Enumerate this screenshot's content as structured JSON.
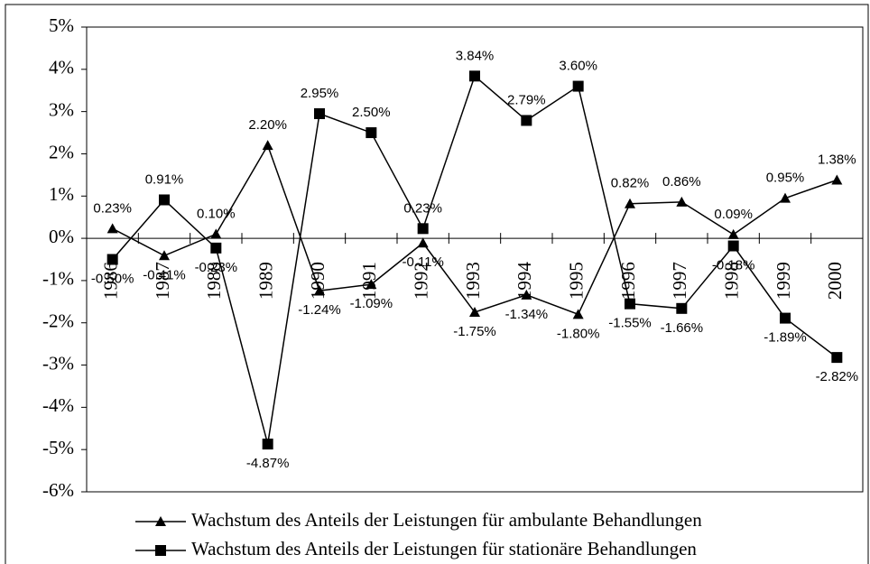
{
  "chart_data": {
    "type": "line",
    "categories": [
      "1986",
      "1987",
      "1988",
      "1989",
      "1990",
      "1991",
      "1992",
      "1993",
      "1994",
      "1995",
      "1996",
      "1997",
      "1998",
      "1999",
      "2000"
    ],
    "series": [
      {
        "name": "Wachstum des Anteils der Leistungen für ambulante Behandlungen",
        "color": "#000000",
        "marker": "triangle",
        "values": [
          0.23,
          -0.41,
          0.1,
          2.2,
          -1.24,
          -1.09,
          -0.11,
          -1.75,
          -1.34,
          -1.8,
          0.82,
          0.86,
          0.09,
          0.95,
          1.38
        ],
        "value_labels": [
          "0.23%",
          "-0.41%",
          "0.10%",
          "2.20%",
          "-1.24%",
          "-1.09%",
          "-0.11%",
          "-1.75%",
          "-1.34%",
          "-1.80%",
          "0.82%",
          "0.86%",
          "0.09%",
          "0.95%",
          "1.38%"
        ]
      },
      {
        "name": "Wachstum des Anteils der Leistungen für stationäre Behandlungen",
        "color": "#000000",
        "marker": "square",
        "values": [
          -0.5,
          0.91,
          -0.23,
          -4.87,
          2.95,
          2.5,
          0.23,
          3.84,
          2.79,
          3.6,
          -1.55,
          -1.66,
          -0.18,
          -1.89,
          -2.82
        ],
        "value_labels": [
          "-0.50%",
          "0.91%",
          "-0.23%",
          "-4.87%",
          "2.95%",
          "2.50%",
          "0.23%",
          "3.84%",
          "2.79%",
          "3.60%",
          "-1.55%",
          "-1.66%",
          "-0.18%",
          "-1.89%",
          "-2.82%"
        ]
      }
    ],
    "ylim": [
      -6,
      5
    ],
    "yticks": [
      {
        "value": -6,
        "label": "-6%"
      },
      {
        "value": -5,
        "label": "-5%"
      },
      {
        "value": -4,
        "label": "-4%"
      },
      {
        "value": -3,
        "label": "-3%"
      },
      {
        "value": -2,
        "label": "-2%"
      },
      {
        "value": -1,
        "label": "-1%"
      },
      {
        "value": 0,
        "label": "0%"
      },
      {
        "value": 1,
        "label": "1%"
      },
      {
        "value": 2,
        "label": "2%"
      },
      {
        "value": 3,
        "label": "3%"
      },
      {
        "value": 4,
        "label": "4%"
      },
      {
        "value": 5,
        "label": "5%"
      }
    ],
    "grid": false,
    "legend": "bottom"
  }
}
